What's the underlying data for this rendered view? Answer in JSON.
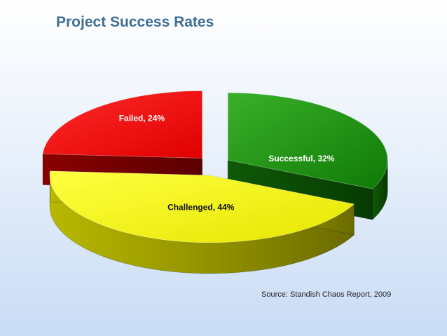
{
  "slide": {
    "title": "Project Success Rates",
    "source": "Source: Standish Chaos Report, 2009"
  },
  "chart_data": {
    "type": "pie",
    "style": "3d-exploded",
    "title": "Project Success Rates",
    "slices": [
      {
        "label": "Successful, 32%",
        "category": "Successful",
        "value": 32,
        "color": "#1a8c0a",
        "side_color": "#0b4a04"
      },
      {
        "label": "Challenged, 44%",
        "category": "Challenged",
        "value": 44,
        "color": "#f8f800",
        "side_color": "#8a8a00"
      },
      {
        "label": "Failed, 24%",
        "category": "Failed",
        "value": 24,
        "color": "#ff0000",
        "side_color": "#7a0000"
      }
    ]
  }
}
